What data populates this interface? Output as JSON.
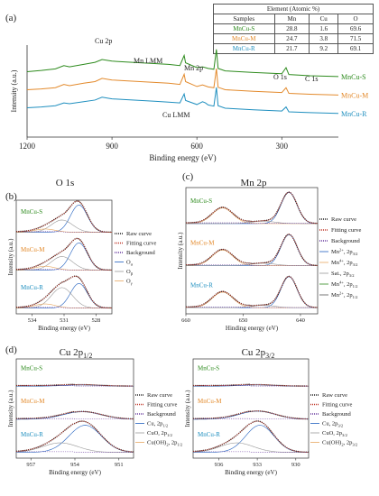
{
  "colors": {
    "s": "#2e8b1e",
    "m": "#e38a2c",
    "r": "#1f8fbf"
  },
  "panel_a": {
    "label": "(a)",
    "table": {
      "caption": "Element (Atomic %)",
      "headers": [
        "Samples",
        "Mn",
        "Cu",
        "O"
      ],
      "rows": [
        {
          "sample": "MnCu-S",
          "mn": "28.8",
          "cu": "1.6",
          "o": "69.6",
          "color": "#2e8b1e"
        },
        {
          "sample": "MnCu-M",
          "mn": "24.7",
          "cu": "3.8",
          "o": "71.5",
          "color": "#e38a2c"
        },
        {
          "sample": "MnCu-R",
          "mn": "21.7",
          "cu": "9.2",
          "o": "69.1",
          "color": "#1f8fbf"
        }
      ]
    }
  },
  "panel_b": {
    "label": "(b)"
  },
  "panel_c": {
    "label": "(c)"
  },
  "panel_d": {
    "label": "(d)"
  },
  "chart_data": [
    {
      "id": "survey",
      "type": "line",
      "xlabel": "Binding energy (eV)",
      "ylabel": "Intensity (a.u.)",
      "xlim": [
        1200,
        100
      ],
      "xticks": [
        1200,
        900,
        600,
        300
      ],
      "annotations": [
        "Cu 2p",
        "Mn LMM",
        "Mn 2p",
        "O 1s",
        "C 1s",
        "Cu LMM"
      ],
      "series": [
        {
          "name": "MnCu-S",
          "color": "#2e8b1e",
          "x": [
            1200,
            1150,
            1100,
            1070,
            1050,
            1000,
            960,
            935,
            900,
            850,
            800,
            750,
            700,
            660,
            645,
            640,
            600,
            580,
            560,
            540,
            531,
            525,
            500,
            400,
            300,
            285,
            275,
            200,
            100
          ],
          "y": [
            0.4,
            0.43,
            0.47,
            0.55,
            0.52,
            0.58,
            0.63,
            0.7,
            0.66,
            0.64,
            0.62,
            0.6,
            0.58,
            0.55,
            0.8,
            0.62,
            0.5,
            0.52,
            0.48,
            0.46,
            0.95,
            0.48,
            0.42,
            0.38,
            0.35,
            0.5,
            0.33,
            0.3,
            0.28
          ]
        },
        {
          "name": "MnCu-M",
          "color": "#e38a2c",
          "x": [
            1200,
            1150,
            1100,
            1070,
            1050,
            1000,
            960,
            935,
            900,
            850,
            800,
            750,
            700,
            660,
            645,
            640,
            600,
            580,
            560,
            540,
            531,
            525,
            500,
            400,
            300,
            285,
            275,
            200,
            100
          ],
          "y": [
            0.4,
            0.42,
            0.45,
            0.53,
            0.5,
            0.56,
            0.6,
            0.68,
            0.64,
            0.62,
            0.6,
            0.58,
            0.56,
            0.53,
            0.78,
            0.6,
            0.48,
            0.52,
            0.47,
            0.45,
            0.92,
            0.46,
            0.4,
            0.36,
            0.33,
            0.45,
            0.31,
            0.29,
            0.27
          ]
        },
        {
          "name": "MnCu-R",
          "color": "#1f8fbf",
          "x": [
            1200,
            1150,
            1100,
            1070,
            1050,
            1000,
            960,
            935,
            900,
            850,
            800,
            750,
            700,
            660,
            645,
            640,
            600,
            580,
            570,
            560,
            540,
            531,
            525,
            500,
            400,
            300,
            285,
            275,
            200,
            100
          ],
          "y": [
            0.4,
            0.42,
            0.45,
            0.52,
            0.5,
            0.55,
            0.59,
            0.66,
            0.62,
            0.6,
            0.58,
            0.56,
            0.54,
            0.52,
            0.74,
            0.58,
            0.48,
            0.55,
            0.52,
            0.47,
            0.44,
            0.9,
            0.45,
            0.39,
            0.35,
            0.32,
            0.42,
            0.3,
            0.28,
            0.26
          ]
        }
      ]
    },
    {
      "id": "o1s",
      "type": "line",
      "title": "O 1s",
      "xlabel": "Binding energy (eV)",
      "ylabel": "Intensity (a.u.)",
      "xlim": [
        535.5,
        526.5
      ],
      "xticks": [
        534,
        531,
        528
      ],
      "samples": [
        {
          "name": "MnCu-S",
          "color": "#2e8b1e",
          "components": [
            {
              "center": 529.6,
              "height": 1.0,
              "width": 0.8
            },
            {
              "center": 531.2,
              "height": 0.45,
              "width": 1.0
            },
            {
              "center": 532.8,
              "height": 0.12,
              "width": 1.0
            }
          ]
        },
        {
          "name": "MnCu-M",
          "color": "#e38a2c",
          "components": [
            {
              "center": 529.6,
              "height": 1.0,
              "width": 0.8
            },
            {
              "center": 531.2,
              "height": 0.5,
              "width": 1.0
            },
            {
              "center": 532.8,
              "height": 0.14,
              "width": 1.0
            }
          ]
        },
        {
          "name": "MnCu-R",
          "color": "#1f8fbf",
          "components": [
            {
              "center": 529.6,
              "height": 0.9,
              "width": 0.8
            },
            {
              "center": 531.2,
              "height": 0.75,
              "width": 1.0
            },
            {
              "center": 532.8,
              "height": 0.15,
              "width": 1.0
            }
          ]
        }
      ],
      "legend": [
        {
          "label": "Raw curve",
          "style": "dotted",
          "color": "#222222"
        },
        {
          "label": "Fitting curve",
          "style": "dotted",
          "color": "#c0392b"
        },
        {
          "label": "Background",
          "style": "dotted",
          "color": "#6c3fa0"
        },
        {
          "label": "Oα",
          "style": "solid",
          "color": "#1f5fbf"
        },
        {
          "label": "Oβ",
          "style": "solid",
          "color": "#999999"
        },
        {
          "label": "Oγ",
          "style": "solid",
          "color": "#e8a860"
        }
      ]
    },
    {
      "id": "mn2p",
      "type": "line",
      "title": "Mn 2p",
      "xlabel": "Hinding energy (eV)",
      "ylabel": "Intensity (a.u.)",
      "xlim": [
        660,
        637
      ],
      "xticks": [
        660,
        650,
        640
      ],
      "samples": [
        {
          "name": "MnCu-S",
          "color": "#2e8b1e",
          "components": [
            {
              "center": 642.0,
              "height": 1.0,
              "width": 1.4
            },
            {
              "center": 653.6,
              "height": 0.5,
              "width": 1.8
            },
            {
              "center": 646.5,
              "height": 0.08,
              "width": 2.0
            }
          ]
        },
        {
          "name": "MnCu-M",
          "color": "#e38a2c",
          "components": [
            {
              "center": 642.0,
              "height": 1.0,
              "width": 1.4
            },
            {
              "center": 653.6,
              "height": 0.5,
              "width": 1.8
            },
            {
              "center": 646.5,
              "height": 0.08,
              "width": 2.0
            }
          ]
        },
        {
          "name": "MnCu-R",
          "color": "#1f8fbf",
          "components": [
            {
              "center": 642.0,
              "height": 1.0,
              "width": 1.4
            },
            {
              "center": 653.6,
              "height": 0.5,
              "width": 1.8
            },
            {
              "center": 646.5,
              "height": 0.08,
              "width": 2.0
            }
          ]
        }
      ],
      "legend": [
        {
          "label": "Raw curve",
          "style": "dotted",
          "color": "#222222"
        },
        {
          "label": "Fitting curve",
          "style": "dotted",
          "color": "#c0392b"
        },
        {
          "label": "Background",
          "style": "dotted",
          "color": "#6c3fa0"
        },
        {
          "label": "Mn2+, 2p3/2",
          "style": "solid",
          "color": "#1f5fbf"
        },
        {
          "label": "Mn4+, 2p3/2",
          "style": "solid",
          "color": "#e8a860"
        },
        {
          "label": "Sat., 2p3/2",
          "style": "solid",
          "color": "#999999"
        },
        {
          "label": "Mn4+, 2p1/2",
          "style": "solid",
          "color": "#2e8b1e"
        },
        {
          "label": "Mn2+, 2p1/2",
          "style": "solid",
          "color": "#555555"
        }
      ]
    },
    {
      "id": "cu2p12",
      "type": "line",
      "title": "Cu 2p1/2",
      "xlabel": "Binding energy (eV)",
      "ylabel": "Intensity (a.u.)",
      "xlim": [
        958,
        950
      ],
      "xticks": [
        957,
        954,
        951
      ],
      "samples": [
        {
          "name": "MnCu-S",
          "color": "#2e8b1e",
          "components": [
            {
              "center": 953.5,
              "height": 0.05,
              "width": 1.2
            }
          ]
        },
        {
          "name": "MnCu-M",
          "color": "#e38a2c",
          "components": [
            {
              "center": 953.5,
              "height": 0.28,
              "width": 1.3
            }
          ]
        },
        {
          "name": "MnCu-R",
          "color": "#1f8fbf",
          "components": [
            {
              "center": 953.3,
              "height": 1.0,
              "width": 1.1
            },
            {
              "center": 955.0,
              "height": 0.35,
              "width": 1.2
            }
          ]
        }
      ],
      "legend": [
        {
          "label": "Raw curve",
          "style": "dotted",
          "color": "#222222"
        },
        {
          "label": "Fitting curve",
          "style": "dotted",
          "color": "#c0392b"
        },
        {
          "label": "Background",
          "style": "dotted",
          "color": "#6c3fa0"
        },
        {
          "label": "Cu, 2p1/2",
          "style": "solid",
          "color": "#1f5fbf"
        },
        {
          "label": "CuO, 2p1/2",
          "style": "solid",
          "color": "#999999"
        },
        {
          "label": "Cu(OH)2, 2p1/2",
          "style": "solid",
          "color": "#e8a860"
        }
      ]
    },
    {
      "id": "cu2p32",
      "type": "line",
      "title": "Cu 2p3/2",
      "xlabel": "Binding energy (eV)",
      "ylabel": "Intensity (a.u.)",
      "xlim": [
        938,
        929
      ],
      "xticks": [
        936,
        933,
        930
      ],
      "samples": [
        {
          "name": "MnCu-S",
          "color": "#2e8b1e",
          "components": [
            {
              "center": 933.0,
              "height": 0.05,
              "width": 1.3
            }
          ]
        },
        {
          "name": "MnCu-M",
          "color": "#e38a2c",
          "components": [
            {
              "center": 933.0,
              "height": 0.3,
              "width": 1.4
            }
          ]
        },
        {
          "name": "MnCu-R",
          "color": "#1f8fbf",
          "components": [
            {
              "center": 932.8,
              "height": 1.0,
              "width": 1.1
            },
            {
              "center": 934.6,
              "height": 0.35,
              "width": 1.3
            }
          ]
        }
      ],
      "legend": [
        {
          "label": "Raw curve",
          "style": "dotted",
          "color": "#222222"
        },
        {
          "label": "Fitting curve",
          "style": "dotted",
          "color": "#c0392b"
        },
        {
          "label": "Background",
          "style": "dotted",
          "color": "#6c3fa0"
        },
        {
          "label": "Cu, 2p3/2",
          "style": "solid",
          "color": "#1f5fbf"
        },
        {
          "label": "CuO, 2p3/2",
          "style": "solid",
          "color": "#999999"
        },
        {
          "label": "Cu(OH)2, 2p3/2",
          "style": "solid",
          "color": "#e8a860"
        }
      ]
    }
  ]
}
